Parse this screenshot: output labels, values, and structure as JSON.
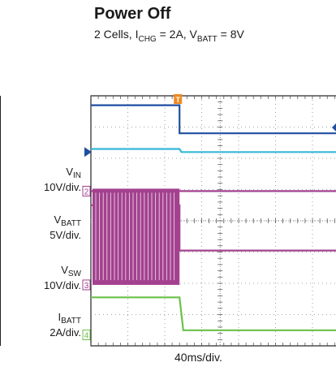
{
  "header": {
    "title": "Power Off",
    "subtitle": {
      "part1": "2 Cells, I",
      "part1_sub": "CHG",
      "part2": " = 2A, V",
      "part2_sub": "BATT",
      "part3": " = 8V"
    }
  },
  "channels": [
    {
      "name": "V",
      "name_sub": "IN",
      "scale": "10V/div.",
      "marker": "",
      "color": "#35b8d6"
    },
    {
      "name": "V",
      "name_sub": "BATT",
      "scale": "5V/div.",
      "marker": "2",
      "color": "#a3418f"
    },
    {
      "name": "V",
      "name_sub": "SW",
      "scale": "10V/div.",
      "marker": "3",
      "color": "#a3418f"
    },
    {
      "name": "I",
      "name_sub": "BATT",
      "scale": "2A/div.",
      "marker": "4",
      "color": "#6cc04a"
    }
  ],
  "timebase": "40ms/div.",
  "chart_data": {
    "type": "line",
    "x_unit": "div",
    "x_range": [
      0,
      10
    ],
    "trigger_marker": "T",
    "trigger_x_div": 2.4,
    "series": [
      {
        "name": "",
        "color": "#1f4fa0",
        "x": [
          0,
          2.4,
          2.4,
          3.0,
          10
        ],
        "y_div": [
          7.7,
          7.7,
          6.8,
          6.8,
          6.8
        ]
      },
      {
        "name": "VIN",
        "color": "#35b8d6",
        "x": [
          0,
          2.4,
          2.45,
          10
        ],
        "y_div": [
          6.3,
          6.3,
          6.2,
          6.2
        ]
      },
      {
        "name": "VBATT",
        "color": "#a3418f",
        "x": [
          0,
          2.4,
          10
        ],
        "y_div": [
          4.95,
          4.95,
          4.95
        ]
      },
      {
        "name": "VSW",
        "color": "#a3418f",
        "x": [
          0,
          2.4,
          2.4,
          10
        ],
        "y_div": [
          4.5,
          4.5,
          3.05,
          3.05
        ],
        "switching_until_div": 2.4
      },
      {
        "name": "IBATT",
        "color": "#6cc04a",
        "x": [
          0,
          2.4,
          2.5,
          10
        ],
        "y_div": [
          1.55,
          1.55,
          0.5,
          0.5
        ]
      }
    ]
  }
}
